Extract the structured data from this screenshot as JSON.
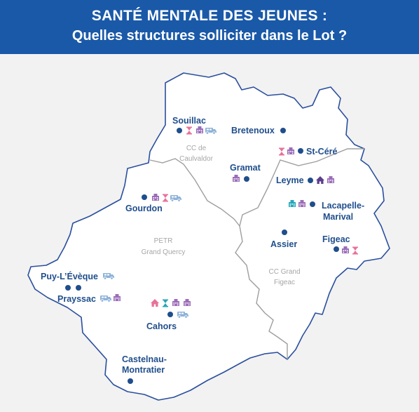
{
  "header": {
    "title_line1": "SANTÉ MENTALE DES JEUNES :",
    "title_line2": "Quelles structures solliciter dans le Lot ?"
  },
  "colors": {
    "header": "#1a59a8",
    "outline": "#2a4f9e",
    "internal_border": "#9e9e9e",
    "dot": "#1f4e8c",
    "city_text": "#1f4e8c",
    "zone_text": "#a6a6a6",
    "pink": "#e8719a",
    "purple": "#9b6cb8",
    "light_blue": "#8fb3d9",
    "teal": "#26a6b9",
    "dark_purple": "#5b3e8e"
  },
  "zones": {
    "caulvaldor": {
      "line1": "CC de",
      "line2": "Caulvaldor"
    },
    "grand_quercy": {
      "line1": "PETR",
      "line2": "Grand Quercy"
    },
    "grand_figeac": {
      "line1": "CC Grand",
      "line2": "Figeac"
    }
  },
  "cities": {
    "souillac": {
      "name": "Souillac",
      "icons": [
        "hourglass-icon",
        "hospital-icon",
        "van-icon"
      ]
    },
    "bretenoux": {
      "name": "Bretenoux",
      "icons": []
    },
    "st_cere": {
      "name": "St-Céré",
      "icons": [
        "hourglass-icon",
        "hospital-icon"
      ]
    },
    "gramat": {
      "name": "Gramat",
      "icons": [
        "hospital-icon"
      ]
    },
    "leyme": {
      "name": "Leyme",
      "icons": [
        "house-icon",
        "hospital-icon"
      ]
    },
    "gourdon": {
      "name": "Gourdon",
      "icons": [
        "hospital-icon",
        "hourglass-icon",
        "van-icon"
      ]
    },
    "lacapelle": {
      "line1": "Lacapelle-",
      "line2": "Marival",
      "icons": [
        "hospital-icon",
        "hospital-icon"
      ]
    },
    "assier": {
      "name": "Assier",
      "icons": []
    },
    "figeac": {
      "name": "Figeac",
      "icons": [
        "hospital-icon",
        "hourglass-icon"
      ]
    },
    "puy_leveque": {
      "name": "Puy-L’Évèque",
      "icons": [
        "van-icon"
      ]
    },
    "prayssac": {
      "name": "Prayssac",
      "icons": [
        "van-icon",
        "hospital-icon"
      ]
    },
    "cahors": {
      "name": "Cahors",
      "icons": [
        "house-icon",
        "hourglass-icon",
        "hospital-icon",
        "hospital-icon",
        "van-icon"
      ]
    },
    "castelnau": {
      "line1": "Castelnau-",
      "line2": "Montratier",
      "icons": []
    }
  }
}
